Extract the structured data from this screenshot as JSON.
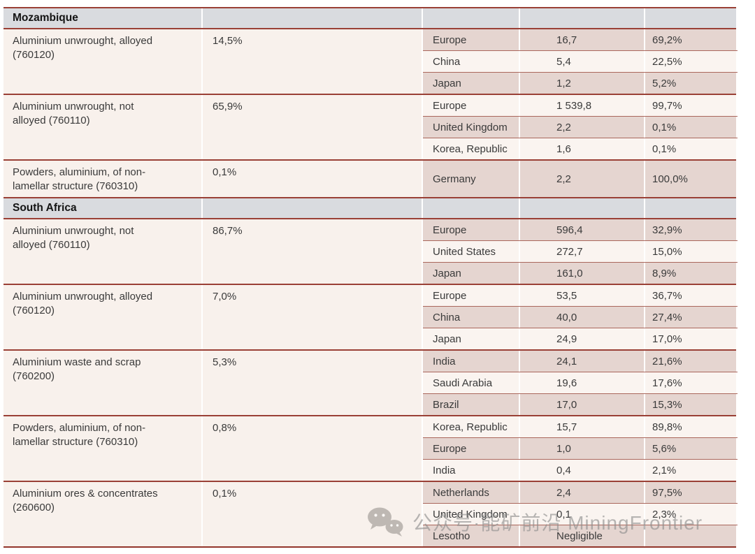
{
  "colors": {
    "header_band": "#d9dbdf",
    "left_zone_bg": "#f8f1ec",
    "row_dark_bg": "#e5d5d0",
    "row_light_bg": "#faf4f0",
    "group_border": "#9a4036",
    "subrow_divider": "#aa675c",
    "watermark_gray": "#8d8d8d"
  },
  "watermark": {
    "icon": "wechat-icon",
    "text": "公众号·能矿前沿 MiningFrontier"
  },
  "table": {
    "sections": [
      {
        "country": "Mozambique",
        "groups": [
          {
            "commodity": "Aluminium unwrought, alloyed\n(760120)",
            "share": "14,5%",
            "destinations": [
              {
                "name": "Europe",
                "value": "16,7",
                "pct": "69,2%"
              },
              {
                "name": "China",
                "value": "5,4",
                "pct": "22,5%"
              },
              {
                "name": "Japan",
                "value": "1,2",
                "pct": "5,2%"
              }
            ]
          },
          {
            "commodity": "Aluminium unwrought, not\nalloyed (760110)",
            "share": "65,9%",
            "destinations": [
              {
                "name": "Europe",
                "value": "1 539,8",
                "pct": "99,7%"
              },
              {
                "name": "United Kingdom",
                "value": "2,2",
                "pct": "0,1%"
              },
              {
                "name": "Korea, Republic",
                "value": "1,6",
                "pct": "0,1%"
              }
            ]
          },
          {
            "commodity": "Powders, aluminium, of non-\nlamellar structure (760310)",
            "share": "0,1%",
            "destinations": [
              {
                "name": "Germany",
                "value": "2,2",
                "pct": "100,0%"
              }
            ]
          }
        ]
      },
      {
        "country": "South Africa",
        "groups": [
          {
            "commodity": "Aluminium unwrought, not\nalloyed (760110)",
            "share": "86,7%",
            "destinations": [
              {
                "name": "Europe",
                "value": "596,4",
                "pct": "32,9%"
              },
              {
                "name": "United States",
                "value": "272,7",
                "pct": "15,0%"
              },
              {
                "name": "Japan",
                "value": "161,0",
                "pct": "8,9%"
              }
            ]
          },
          {
            "commodity": "Aluminium unwrought, alloyed\n(760120)",
            "share": "7,0%",
            "destinations": [
              {
                "name": "Europe",
                "value": "53,5",
                "pct": "36,7%"
              },
              {
                "name": "China",
                "value": "40,0",
                "pct": "27,4%"
              },
              {
                "name": "Japan",
                "value": "24,9",
                "pct": "17,0%"
              }
            ]
          },
          {
            "commodity": "Aluminium waste and scrap\n(760200)",
            "share": "5,3%",
            "destinations": [
              {
                "name": "India",
                "value": "24,1",
                "pct": "21,6%"
              },
              {
                "name": "Saudi Arabia",
                "value": "19,6",
                "pct": "17,6%"
              },
              {
                "name": "Brazil",
                "value": "17,0",
                "pct": "15,3%"
              }
            ]
          },
          {
            "commodity": "Powders, aluminium, of non-\nlamellar structure (760310)",
            "share": "0,8%",
            "destinations": [
              {
                "name": "Korea, Republic",
                "value": "15,7",
                "pct": "89,8%"
              },
              {
                "name": "Europe",
                "value": "1,0",
                "pct": "5,6%"
              },
              {
                "name": "India",
                "value": "0,4",
                "pct": "2,1%"
              }
            ]
          },
          {
            "commodity": "Aluminium ores & concentrates\n(260600)",
            "share": "0,1%",
            "destinations": [
              {
                "name": "Netherlands",
                "value": "2,4",
                "pct": "97,5%"
              },
              {
                "name": "United Kingdom",
                "value": "0,1",
                "pct": "2,3%"
              },
              {
                "name": "Lesotho",
                "value": "Negligible",
                "pct": ""
              }
            ]
          }
        ]
      }
    ]
  }
}
